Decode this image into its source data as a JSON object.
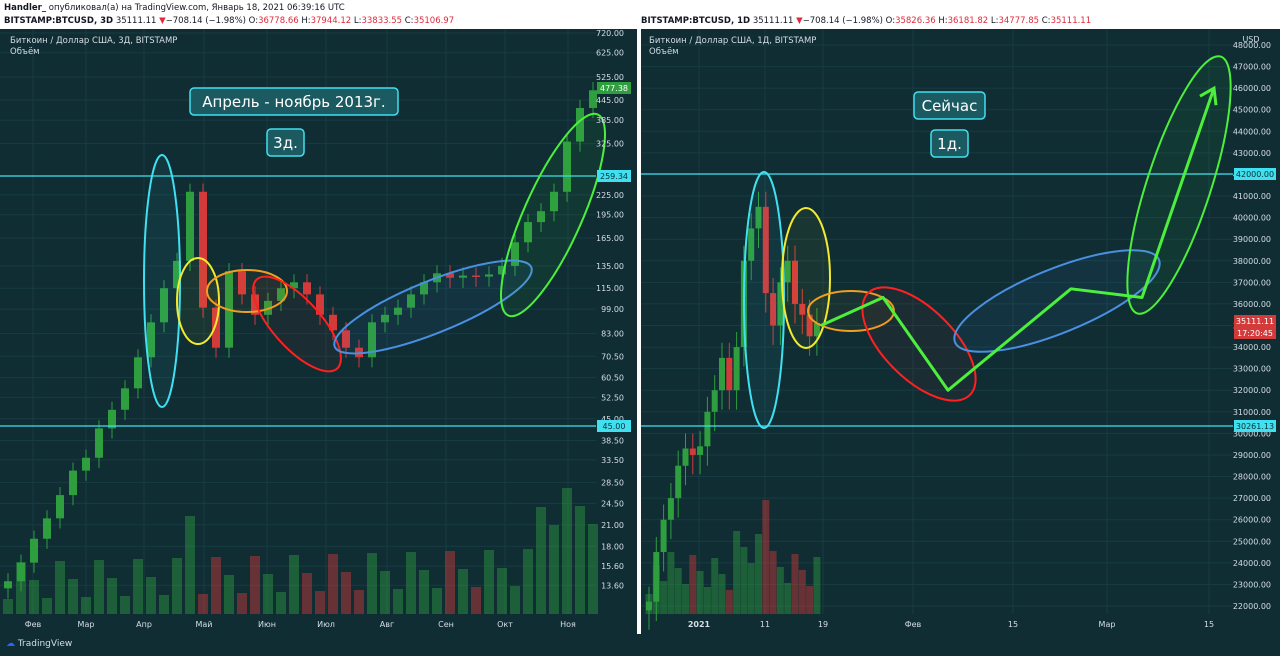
{
  "header": {
    "publisher": "Handler_",
    "published_text": " опубликовал(а) на TradingView.com, Январь 18, 2021 06:39:16 UTC"
  },
  "left": {
    "ticker": "BITSTAMP:BTCUSD, 3D",
    "last": "35111.11",
    "change": "−708.14 (−1.98%)",
    "O": "36778.66",
    "H": "37944.12",
    "L": "33833.55",
    "C": "35106.97",
    "title": "Биткоин / Доллар США, 3Д, BITSTAMP",
    "volume_label": "Объём",
    "annotation_title": "Апрель - ноябрь 2013г.",
    "annotation_tf": "3д.",
    "price_badge": "477.38",
    "hline_top_label": "259.34",
    "hline_bottom_label": "45.00",
    "yticks": [
      "720.00",
      "625.00",
      "525.00",
      "445.00",
      "385.00",
      "325.00",
      "225.00",
      "195.00",
      "165.00",
      "135.00",
      "115.00",
      "99.00",
      "83.00",
      "70.50",
      "60.50",
      "52.50",
      "45.00",
      "38.50",
      "33.50",
      "28.50",
      "24.50",
      "21.00",
      "18.00",
      "15.60",
      "13.60"
    ],
    "xticks": [
      "Фев",
      "Мар",
      "Апр",
      "Май",
      "Июн",
      "Июл",
      "Авг",
      "Сен",
      "Окт",
      "Ноя"
    ]
  },
  "right": {
    "ticker": "BITSTAMP:BTCUSD, 1D",
    "last": "35111.11",
    "change": "−708.14 (−1.98%)",
    "O": "35826.36",
    "H": "36181.82",
    "L": "34777.85",
    "C": "35111.11",
    "title": "Биткоин / Доллар США, 1Д, BITSTAMP",
    "volume_label": "Объём",
    "annotation_title": "Сейчас",
    "annotation_tf": "1д.",
    "currency": "USD",
    "price_badge": "35111.11",
    "time_badge": "17:20:45",
    "hline_top_label": "42000.00",
    "hline_bottom_label": "30261.13",
    "yticks": [
      "48000.00",
      "47000.00",
      "46000.00",
      "45000.00",
      "44000.00",
      "43000.00",
      "42000.00",
      "41000.00",
      "40000.00",
      "39000.00",
      "38000.00",
      "37000.00",
      "36000.00",
      "35000.00",
      "34000.00",
      "33000.00",
      "32000.00",
      "31000.00",
      "30000.00",
      "29000.00",
      "28000.00",
      "27000.00",
      "26000.00",
      "25000.00",
      "24000.00",
      "23000.00",
      "22000.00"
    ],
    "xticks": [
      "2021",
      "11",
      "19",
      "Фев",
      "15",
      "Мар",
      "15"
    ]
  },
  "footer": {
    "brand": "TradingView"
  },
  "colors": {
    "bg": "#0f2d33",
    "up": "#2e9e3f",
    "down": "#d33a3a",
    "cyan": "#40e0f0",
    "yellow": "#f2ea2c",
    "orange": "#f0a020",
    "red": "#ff2020",
    "blue": "#4a8fe0",
    "green": "#4cf03c"
  },
  "chart_data": [
    {
      "type": "candlestick",
      "title": "Биткоин / Доллар США, 3Д, BITSTAMP",
      "y_scale": "log",
      "ylim": [
        12.5,
        720
      ],
      "x_categories": [
        "Фев",
        "Мар",
        "Апр",
        "Май",
        "Июн",
        "Июл",
        "Авг",
        "Сен",
        "Окт",
        "Ноя"
      ],
      "close_path_approx": [
        14,
        16,
        19,
        22,
        26,
        31,
        34,
        42,
        48,
        56,
        70,
        90,
        115,
        140,
        230,
        100,
        75,
        130,
        110,
        95,
        105,
        115,
        120,
        110,
        95,
        85,
        75,
        70,
        90,
        95,
        100,
        110,
        120,
        128,
        124,
        126,
        125,
        127,
        135,
        160,
        185,
        200,
        230,
        330,
        420,
        477
      ],
      "horizontal_lines": [
        259.34,
        45.0
      ]
    },
    {
      "type": "line",
      "title": "Биткоин / Доллар США, 1Д, BITSTAMP",
      "ylim": [
        21500,
        48500
      ],
      "x_categories": [
        "2021",
        "11",
        "19",
        "Фев",
        "15",
        "Мар",
        "15"
      ],
      "projection_path": [
        35000,
        36300,
        32000,
        36700,
        36300,
        46000
      ],
      "horizontal_lines": [
        42000.0,
        30261.13
      ],
      "last_price": 35111.11
    }
  ]
}
